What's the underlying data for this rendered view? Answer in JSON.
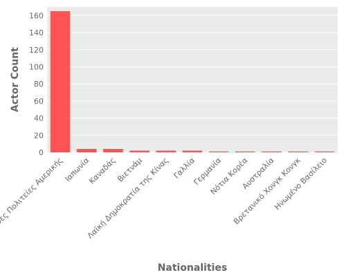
{
  "chart_data": {
    "type": "bar",
    "title": "",
    "xlabel": "Nationalities",
    "ylabel": "Actor Count",
    "categories": [
      "Ηνωμένες Πολιτείες Αμερικής",
      "Ιαπωνία",
      "Καναδάς",
      "Βιετνάμ",
      "Λαϊκή Δημοκρατία της Κίνας",
      "Γαλλία",
      "Γερμανία",
      "Νότια Κορέα",
      "Αυστραλία",
      "Βρετανικό Χονγκ Κονγκ",
      "Ηνωμένο Βασίλειο"
    ],
    "values": [
      165,
      4,
      4,
      2,
      2,
      2,
      1,
      1,
      1,
      1,
      1
    ],
    "ylim": [
      0,
      170
    ],
    "yticks": [
      0,
      20,
      40,
      60,
      80,
      100,
      120,
      140,
      160
    ],
    "grid": true,
    "legend": "none",
    "colors": {
      "bar": "#fc5357",
      "plot_background": "#ebebeb",
      "grid": "#ffffff",
      "text": "#666666"
    }
  }
}
